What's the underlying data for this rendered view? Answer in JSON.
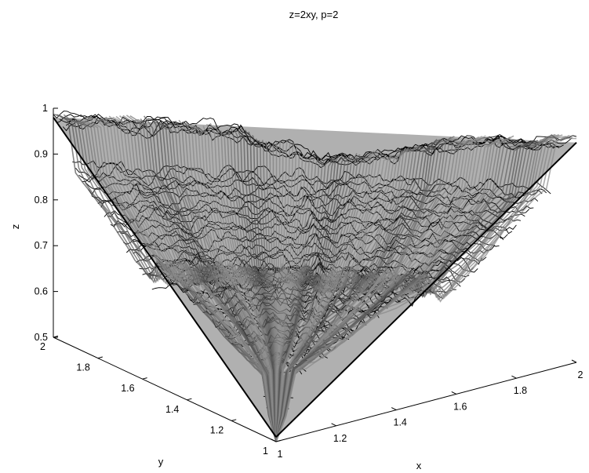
{
  "chart_data": {
    "type": "surface3d",
    "title": "z=2xy, p=2",
    "xlabel": "x",
    "ylabel": "y",
    "zlabel": "z",
    "xlim": [
      1,
      2
    ],
    "ylim": [
      1,
      2
    ],
    "zlim": [
      0.5,
      1
    ],
    "x_ticks": [
      "1",
      "1.2",
      "1.4",
      "1.6",
      "1.8",
      "2"
    ],
    "y_ticks": [
      "1",
      "1.2",
      "1.4",
      "1.6",
      "1.8",
      "2"
    ],
    "z_ticks": [
      "0.5",
      "0.6",
      "0.7",
      "0.8",
      "0.9",
      "1"
    ],
    "grid": false,
    "colormap": "gray",
    "edge_color": "#000000",
    "face_color": "#707070"
  }
}
